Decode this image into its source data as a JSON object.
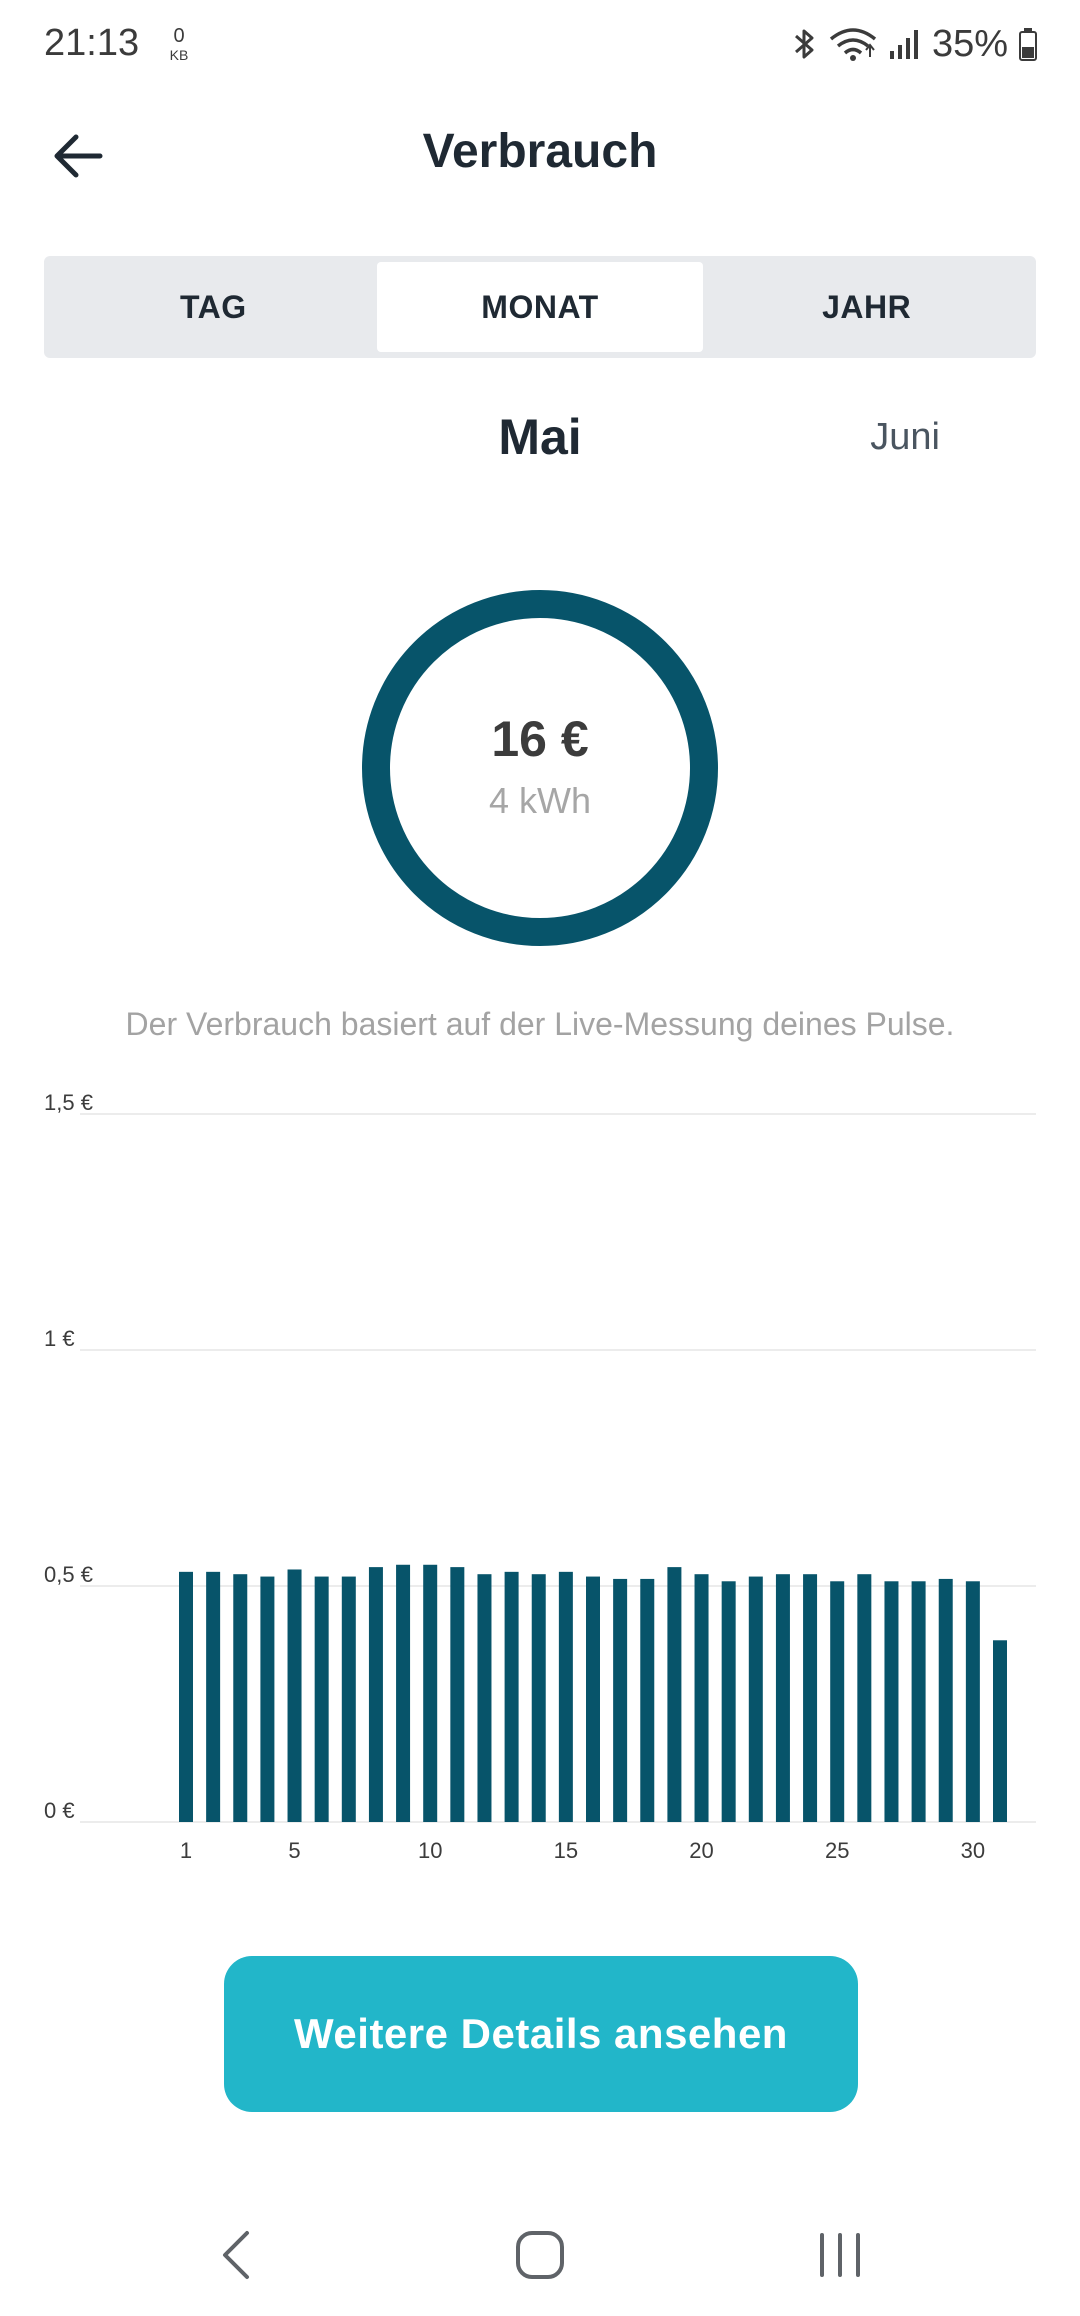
{
  "status_bar": {
    "time": "21:13",
    "data_rate_value": "0",
    "data_rate_unit": "KB",
    "battery_percent": "35%",
    "icons": [
      "bluetooth-icon",
      "wifi-icon",
      "signal-icon",
      "battery-icon"
    ]
  },
  "header": {
    "title": "Verbrauch",
    "back_icon": "arrow-left-icon"
  },
  "tabs": [
    {
      "label": "TAG",
      "active": false
    },
    {
      "label": "MONAT",
      "active": true
    },
    {
      "label": "JAHR",
      "active": false
    }
  ],
  "period": {
    "current": "Mai",
    "next": "Juni"
  },
  "summary": {
    "amount": "16 €",
    "energy": "4 kWh"
  },
  "info_text": "Der Verbrauch basiert auf der Live-Messung deines Pulse.",
  "chart_data": {
    "type": "bar",
    "x": [
      1,
      2,
      3,
      4,
      5,
      6,
      7,
      8,
      9,
      10,
      11,
      12,
      13,
      14,
      15,
      16,
      17,
      18,
      19,
      20,
      21,
      22,
      23,
      24,
      25,
      26,
      27,
      28,
      29,
      30,
      31
    ],
    "x_tick_labels": [
      "1",
      "5",
      "10",
      "15",
      "20",
      "25",
      "30"
    ],
    "x_ticks": [
      1,
      5,
      10,
      15,
      20,
      25,
      30
    ],
    "values": [
      0.53,
      0.53,
      0.525,
      0.52,
      0.535,
      0.52,
      0.52,
      0.54,
      0.545,
      0.545,
      0.54,
      0.525,
      0.53,
      0.525,
      0.53,
      0.52,
      0.515,
      0.515,
      0.54,
      0.525,
      0.51,
      0.52,
      0.525,
      0.525,
      0.51,
      0.525,
      0.51,
      0.51,
      0.515,
      0.51,
      0.385
    ],
    "y_ticks": [
      0,
      0.5,
      1,
      1.5
    ],
    "y_tick_labels": [
      "0 €",
      "0,5 €",
      "1 €",
      "1,5 €"
    ],
    "ylim": [
      0,
      1.5
    ],
    "grid": true,
    "bar_color": "#07546a",
    "title": "",
    "xlabel": "",
    "ylabel": ""
  },
  "cta": {
    "label": "Weitere Details ansehen"
  },
  "nav_bar": {
    "icons": [
      "back-nav-icon",
      "home-nav-icon",
      "recents-nav-icon"
    ]
  },
  "colors": {
    "ring": "#07546a",
    "accent": "#22b6c9",
    "tab_bg": "#e8eaed"
  }
}
